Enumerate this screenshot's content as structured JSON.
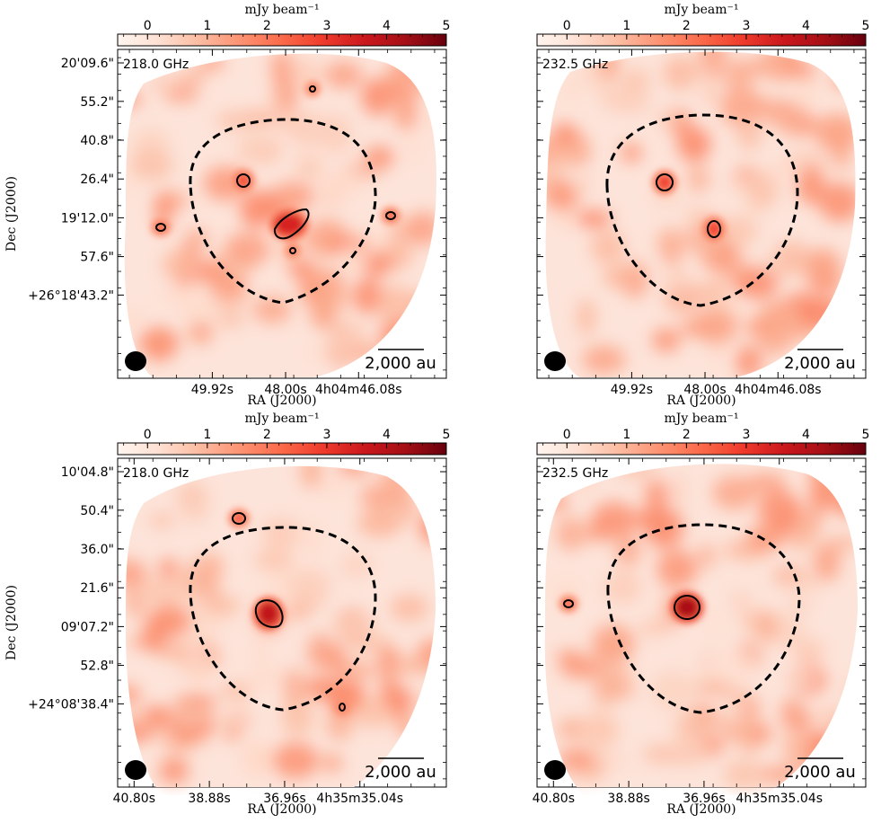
{
  "chart_data": {
    "type": "heatmap",
    "colorbar": {
      "label": "mJy beam⁻¹",
      "ticks": [
        "0",
        "1",
        "2",
        "3",
        "4",
        "5"
      ],
      "tick_values": [
        0,
        1,
        2,
        3,
        4,
        5
      ],
      "range": [
        -0.5,
        5
      ],
      "colormap": [
        "#fff5f0",
        "#fee0d2",
        "#fcbba1",
        "#fc9272",
        "#fb6a4a",
        "#ef3b2c",
        "#cb181d",
        "#a50f15",
        "#67000d"
      ]
    },
    "panels": [
      {
        "id": "top-left",
        "frequency": "218.0 GHz",
        "xlabel": "RA (J2000)",
        "ylabel": "Dec (J2000)",
        "xticks": [
          "49.92s",
          "48.00s",
          "4h04m46.08s"
        ],
        "yticks": [
          "20'09.6\"",
          "55.2\"",
          "40.8\"",
          "26.4\"",
          "19'12.0\"",
          "57.6\"",
          "+26°18'43.2\""
        ],
        "scale_bar": "2,000 au",
        "sources": [
          {
            "peak": 3.4
          },
          {
            "peak": 2.7
          },
          {
            "peak": 2.6
          },
          {
            "peak": 2.6
          },
          {
            "peak": 2.5
          },
          {
            "peak": 2.5
          }
        ]
      },
      {
        "id": "top-right",
        "frequency": "232.5 GHz",
        "xlabel": "RA (J2000)",
        "ylabel": "",
        "xticks": [
          "49.92s",
          "48.00s",
          "4h04m46.08s"
        ],
        "yticks": [],
        "scale_bar": "2,000 au",
        "sources": [
          {
            "peak": 2.9
          },
          {
            "peak": 2.9
          }
        ]
      },
      {
        "id": "bottom-left",
        "frequency": "218.0 GHz",
        "xlabel": "RA (J2000)",
        "ylabel": "Dec (J2000)",
        "xticks": [
          "40.80s",
          "38.88s",
          "36.96s",
          "4h35m35.04s"
        ],
        "yticks": [
          "10'04.8\"",
          "50.4\"",
          "36.0\"",
          "21.6\"",
          "09'07.2\"",
          "52.8\"",
          "+24°08'38.4\""
        ],
        "scale_bar": "2,000 au",
        "sources": [
          {
            "peak": 3.8
          },
          {
            "peak": 2.7
          },
          {
            "peak": 2.5
          }
        ]
      },
      {
        "id": "bottom-right",
        "frequency": "232.5 GHz",
        "xlabel": "RA (J2000)",
        "ylabel": "",
        "xticks": [
          "40.80s",
          "38.88s",
          "36.96s",
          "4h35m35.04s"
        ],
        "yticks": [],
        "scale_bar": "2,000 au",
        "sources": [
          {
            "peak": 4.2
          },
          {
            "peak": 2.6
          }
        ]
      }
    ]
  }
}
